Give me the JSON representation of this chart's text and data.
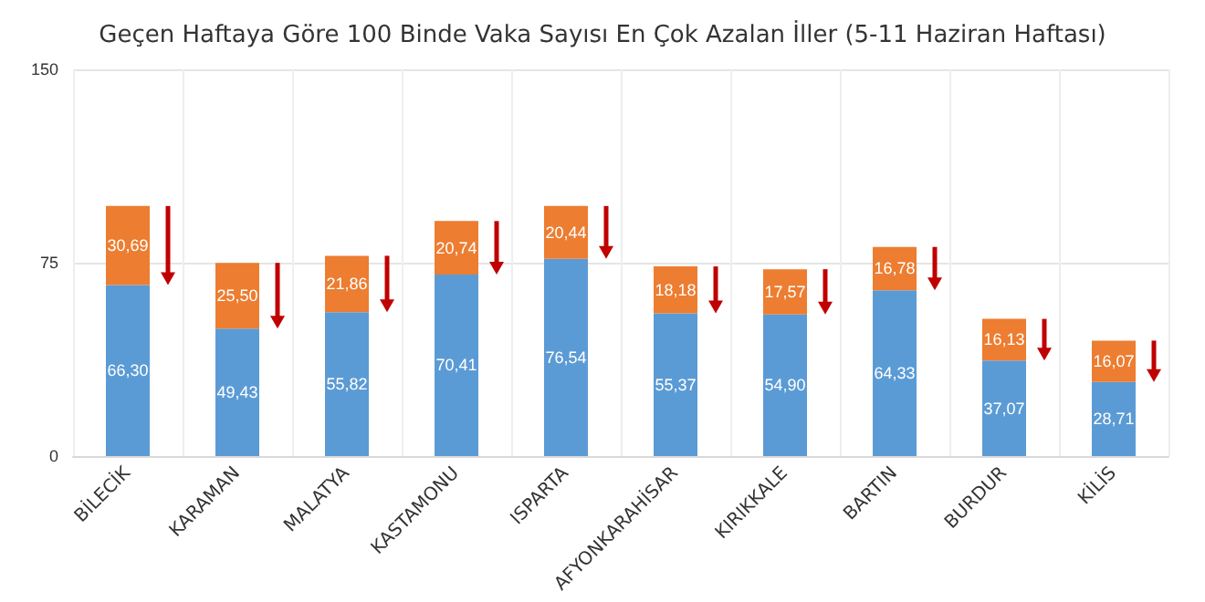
{
  "chart_data": {
    "type": "bar",
    "title": "Geçen Haftaya Göre 100 Binde Vaka Sayısı En Çok Azalan İller (5-11 Haziran Haftası)",
    "categories": [
      "BİLECİK",
      "KARAMAN",
      "MALATYA",
      "KASTAMONU",
      "ISPARTA",
      "AFYONKARAHİSAR",
      "KIRIKKALE",
      "BARTIN",
      "BURDUR",
      "KİLİS"
    ],
    "stacked": true,
    "grid": true,
    "ylim": [
      0,
      150
    ],
    "yticks": [
      0,
      75,
      150
    ],
    "series": [
      {
        "color": "#5b9bd5",
        "values": [
          66.3,
          49.43,
          55.82,
          70.41,
          76.54,
          55.37,
          54.9,
          64.33,
          37.07,
          28.71
        ],
        "value_labels": [
          "66,30",
          "49,43",
          "55,82",
          "70,41",
          "76,54",
          "55,37",
          "54,90",
          "64,33",
          "37,07",
          "28,71"
        ]
      },
      {
        "color": "#ed7d31",
        "values": [
          30.69,
          25.5,
          21.86,
          20.74,
          20.44,
          18.18,
          17.57,
          16.78,
          16.13,
          16.07
        ],
        "value_labels": [
          "30,69",
          "25,50",
          "21,86",
          "20,74",
          "20,44",
          "18,18",
          "17,57",
          "16,78",
          "16,13",
          "16,07"
        ]
      }
    ]
  }
}
